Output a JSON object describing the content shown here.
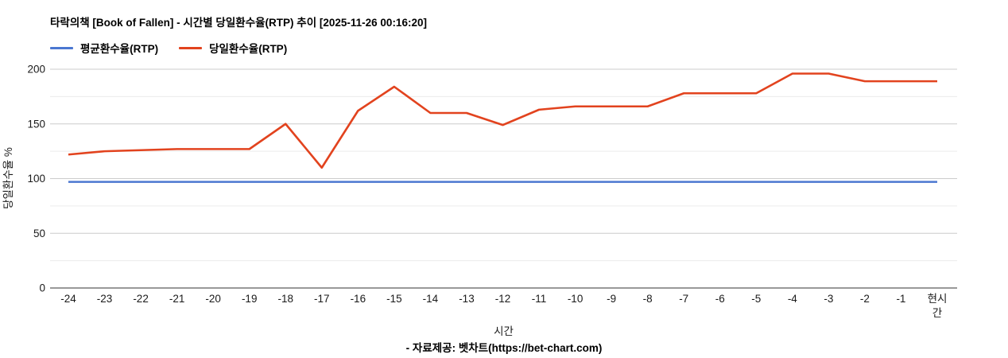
{
  "header": {
    "title": "타락의책 [Book of Fallen] - 시간별 당일환수율(RTP) 추이 [2025-11-26 00:16:20]"
  },
  "legend": [
    {
      "label": "평균환수율(RTP)",
      "color": "#4b77d1"
    },
    {
      "label": "당일환수율(RTP)",
      "color": "#e2431e"
    }
  ],
  "chart_data": {
    "type": "line",
    "title": "타락의책 [Book of Fallen] - 시간별 당일환수율(RTP) 추이 [2025-11-26 00:16:20]",
    "categories": [
      "-24",
      "-23",
      "-22",
      "-21",
      "-20",
      "-19",
      "-18",
      "-17",
      "-16",
      "-15",
      "-14",
      "-13",
      "-12",
      "-11",
      "-10",
      "-9",
      "-8",
      "-7",
      "-6",
      "-5",
      "-4",
      "-3",
      "-2",
      "-1",
      "현시간"
    ],
    "series": [
      {
        "name": "평균환수율(RTP)",
        "color": "#4b77d1",
        "values": [
          97,
          97,
          97,
          97,
          97,
          97,
          97,
          97,
          97,
          97,
          97,
          97,
          97,
          97,
          97,
          97,
          97,
          97,
          97,
          97,
          97,
          97,
          97,
          97,
          97
        ]
      },
      {
        "name": "당일환수율(RTP)",
        "color": "#e2431e",
        "values": [
          122,
          125,
          126,
          127,
          127,
          127,
          150,
          110,
          162,
          184,
          160,
          160,
          149,
          163,
          166,
          166,
          166,
          178,
          178,
          178,
          196,
          196,
          189,
          189,
          189
        ]
      }
    ],
    "xlabel": "시간",
    "ylabel": "당일환수율 %",
    "ylim": [
      0,
      200
    ],
    "yticks": [
      0,
      50,
      100,
      150,
      200
    ],
    "minor_yticks": [
      25,
      75,
      125,
      175
    ],
    "grid": true,
    "legend_position": "top-left"
  },
  "colors": {
    "grid_major": "#cccccc",
    "grid_minor": "#ececec",
    "axis_line": "#333333",
    "tick_text": "#1a1a1a"
  },
  "footer": {
    "source": "- 자료제공: 벳차트(https://bet-chart.com)"
  }
}
